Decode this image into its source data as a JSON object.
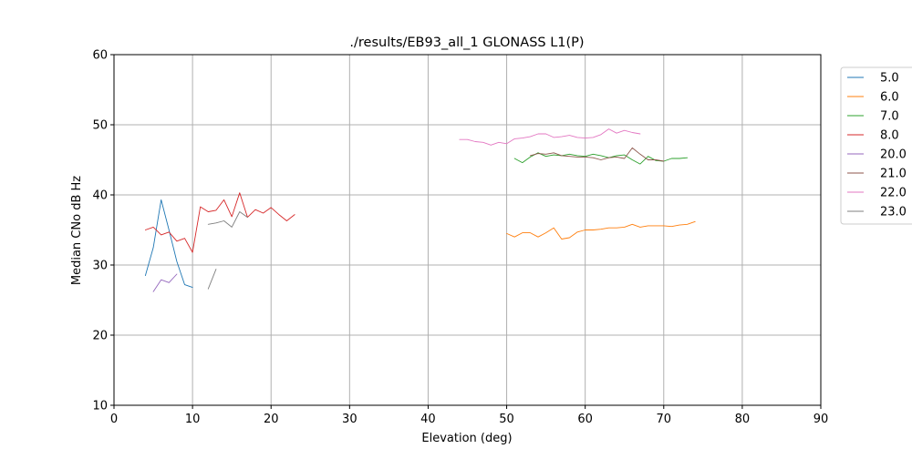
{
  "chart_data": {
    "type": "line",
    "title": "./results/EB93_all_1 GLONASS L1(P)",
    "xlabel": "Elevation (deg)",
    "ylabel": "Median CNo dB Hz",
    "xlim": [
      0,
      90
    ],
    "ylim": [
      10,
      60
    ],
    "xticks": [
      0,
      10,
      20,
      30,
      40,
      50,
      60,
      70,
      80,
      90
    ],
    "yticks": [
      10,
      20,
      30,
      40,
      50,
      60
    ],
    "grid": true,
    "legend_position": "upper-right-outside",
    "series": [
      {
        "name": "5.0",
        "color": "#1f77b4",
        "points": [
          [
            4,
            28.5
          ],
          [
            5,
            32.5
          ],
          [
            6,
            39.3
          ],
          [
            7,
            35.0
          ],
          [
            8,
            30.5
          ],
          [
            9,
            27.2
          ],
          [
            10,
            26.8
          ]
        ]
      },
      {
        "name": "6.0",
        "color": "#ff7f0e",
        "points": [
          [
            50,
            34.5
          ],
          [
            51,
            34.0
          ],
          [
            52,
            34.6
          ],
          [
            53,
            34.6
          ],
          [
            54,
            34.0
          ],
          [
            55,
            34.6
          ],
          [
            56,
            35.3
          ],
          [
            57,
            33.7
          ],
          [
            58,
            33.9
          ],
          [
            59,
            34.7
          ],
          [
            60,
            35.0
          ],
          [
            61,
            35.0
          ],
          [
            62,
            35.1
          ],
          [
            63,
            35.3
          ],
          [
            64,
            35.3
          ],
          [
            65,
            35.4
          ],
          [
            66,
            35.8
          ],
          [
            67,
            35.4
          ],
          [
            68,
            35.6
          ],
          [
            69,
            35.6
          ],
          [
            70,
            35.6
          ],
          [
            71,
            35.5
          ],
          [
            72,
            35.7
          ],
          [
            73,
            35.8
          ],
          [
            74,
            36.2
          ]
        ]
      },
      {
        "name": "7.0",
        "color": "#2ca02c",
        "points": [
          [
            51,
            45.2
          ],
          [
            52,
            44.6
          ],
          [
            53,
            45.4
          ],
          [
            54,
            46.0
          ],
          [
            55,
            45.5
          ],
          [
            56,
            45.7
          ],
          [
            57,
            45.6
          ],
          [
            58,
            45.8
          ],
          [
            59,
            45.6
          ],
          [
            60,
            45.5
          ],
          [
            61,
            45.8
          ],
          [
            62,
            45.6
          ],
          [
            63,
            45.3
          ],
          [
            64,
            45.6
          ],
          [
            65,
            45.7
          ],
          [
            66,
            45.0
          ],
          [
            67,
            44.4
          ],
          [
            68,
            45.5
          ],
          [
            69,
            44.9
          ],
          [
            70,
            44.8
          ],
          [
            71,
            45.2
          ],
          [
            72,
            45.2
          ],
          [
            73,
            45.3
          ]
        ]
      },
      {
        "name": "8.0",
        "color": "#d62728",
        "points": [
          [
            4,
            35.0
          ],
          [
            5,
            35.4
          ],
          [
            6,
            34.3
          ],
          [
            7,
            34.7
          ],
          [
            8,
            33.4
          ],
          [
            9,
            33.8
          ],
          [
            10,
            31.8
          ],
          [
            11,
            38.3
          ],
          [
            12,
            37.6
          ],
          [
            13,
            37.8
          ],
          [
            14,
            39.3
          ],
          [
            15,
            36.9
          ],
          [
            16,
            40.3
          ],
          [
            17,
            36.8
          ],
          [
            18,
            37.9
          ],
          [
            19,
            37.4
          ],
          [
            20,
            38.2
          ],
          [
            21,
            37.2
          ],
          [
            22,
            36.3
          ],
          [
            23,
            37.2
          ]
        ]
      },
      {
        "name": "20.0",
        "color": "#9467bd",
        "points": [
          [
            5,
            26.2
          ],
          [
            6,
            27.9
          ],
          [
            7,
            27.5
          ],
          [
            8,
            28.7
          ]
        ]
      },
      {
        "name": "21.0",
        "color": "#8c564b",
        "points": [
          [
            53,
            45.6
          ],
          [
            54,
            45.9
          ],
          [
            55,
            45.8
          ],
          [
            56,
            46.0
          ],
          [
            57,
            45.6
          ],
          [
            58,
            45.5
          ],
          [
            59,
            45.4
          ],
          [
            60,
            45.4
          ],
          [
            61,
            45.3
          ],
          [
            62,
            45.0
          ],
          [
            63,
            45.3
          ],
          [
            64,
            45.4
          ],
          [
            65,
            45.2
          ],
          [
            66,
            46.7
          ],
          [
            67,
            45.8
          ],
          [
            68,
            45.0
          ],
          [
            69,
            45.0
          ],
          [
            70,
            44.8
          ]
        ]
      },
      {
        "name": "22.0",
        "color": "#e377c2",
        "points": [
          [
            44,
            47.9
          ],
          [
            45,
            47.9
          ],
          [
            46,
            47.6
          ],
          [
            47,
            47.5
          ],
          [
            48,
            47.1
          ],
          [
            49,
            47.5
          ],
          [
            50,
            47.3
          ],
          [
            51,
            48.0
          ],
          [
            52,
            48.1
          ],
          [
            53,
            48.3
          ],
          [
            54,
            48.7
          ],
          [
            55,
            48.7
          ],
          [
            56,
            48.2
          ],
          [
            57,
            48.3
          ],
          [
            58,
            48.5
          ],
          [
            59,
            48.2
          ],
          [
            60,
            48.1
          ],
          [
            61,
            48.2
          ],
          [
            62,
            48.6
          ],
          [
            63,
            49.4
          ],
          [
            64,
            48.8
          ],
          [
            65,
            49.2
          ],
          [
            66,
            48.9
          ],
          [
            67,
            48.7
          ]
        ]
      },
      {
        "name": "23.0",
        "color": "#7f7f7f",
        "points": [
          [
            12,
            35.8
          ],
          [
            13,
            36.0
          ],
          [
            14,
            36.3
          ],
          [
            15,
            35.4
          ],
          [
            16,
            37.6
          ],
          [
            17,
            36.8
          ],
          [
            12,
            null
          ],
          [
            12,
            26.6
          ],
          [
            13,
            29.4
          ]
        ]
      }
    ]
  }
}
